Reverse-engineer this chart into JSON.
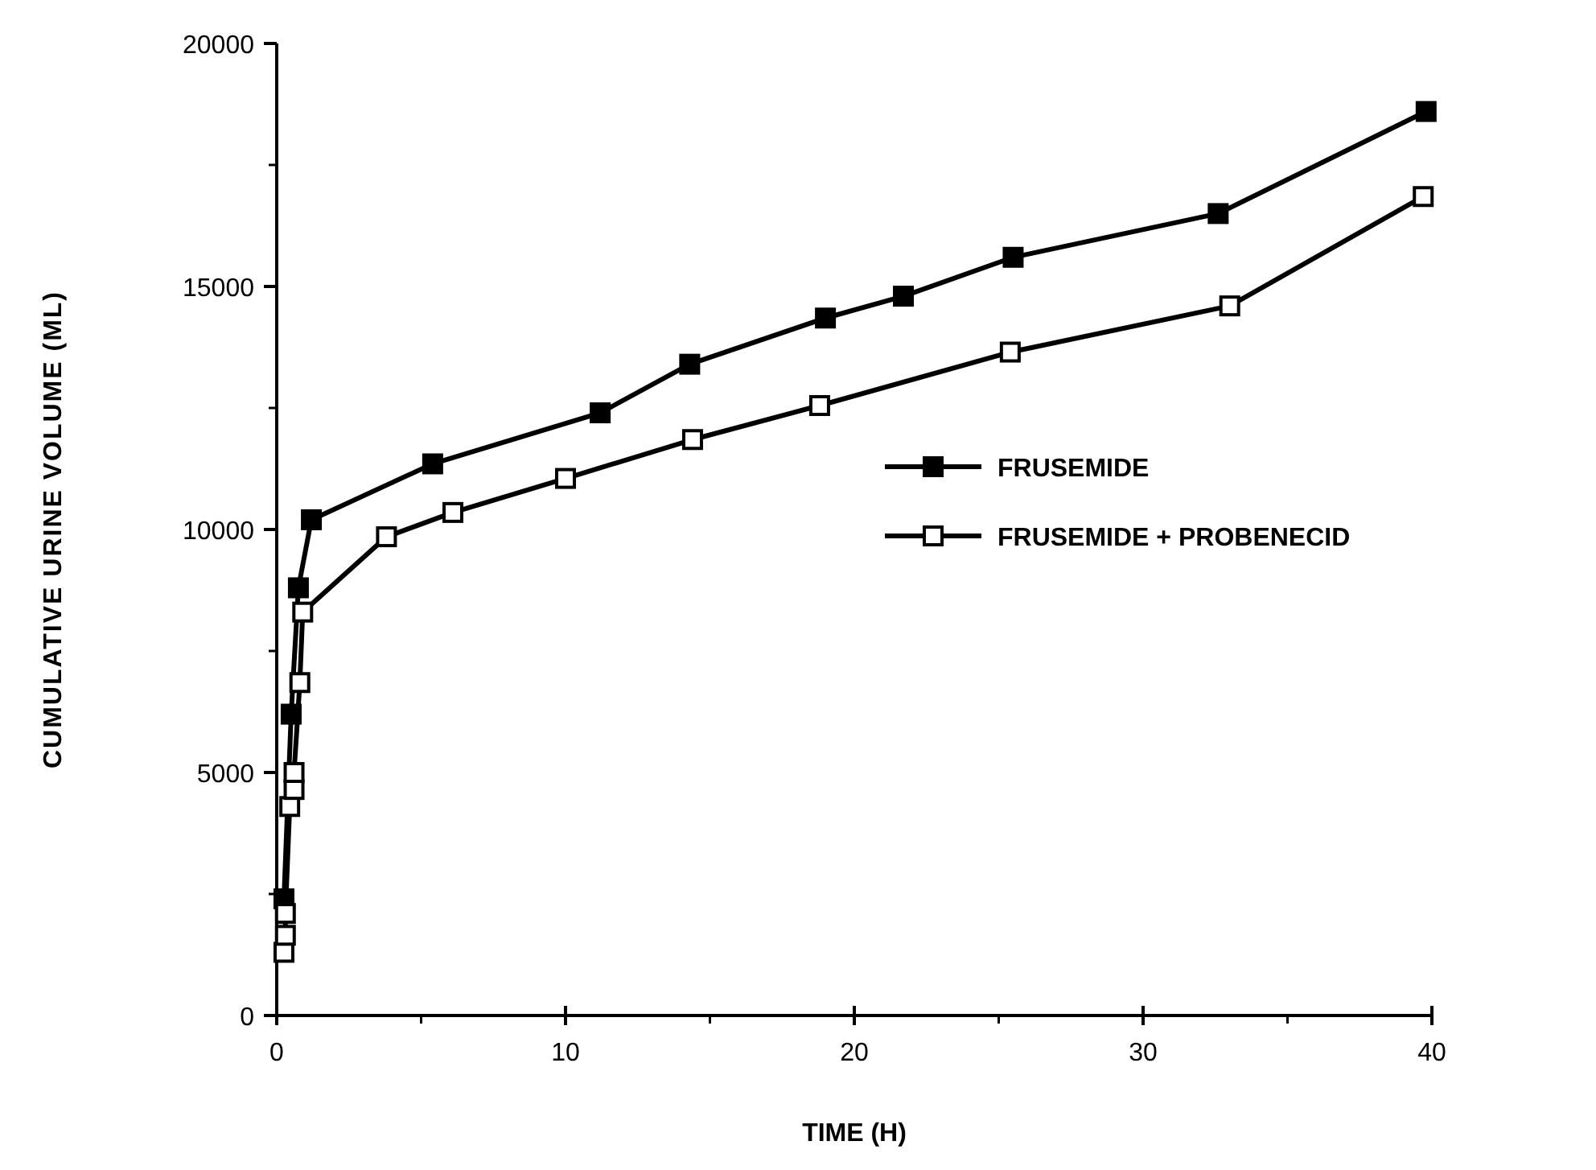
{
  "chart_data": {
    "type": "line",
    "xlabel": "TIME (H)",
    "ylabel": "CUMULATIVE URINE VOLUME (ML)",
    "xlim": [
      0,
      40
    ],
    "xticks": [
      0,
      10,
      20,
      30,
      40
    ],
    "ylim": [
      0,
      20000
    ],
    "yticks": [
      0,
      5000,
      10000,
      15000,
      20000
    ],
    "marker": "square",
    "line_style": "solid",
    "legend": "right",
    "grid": false,
    "series": [
      {
        "name": "FRUSEMIDE",
        "color": "#000000",
        "x": [
          0.25,
          0.5,
          0.75,
          1.2,
          5.4,
          11.2,
          14.3,
          19,
          21.7,
          25.5,
          32.6,
          39.8
        ],
        "values": [
          2400,
          6200,
          8800,
          10200,
          11350,
          12400,
          13400,
          14350,
          14800,
          15600,
          16500,
          18600
        ]
      },
      {
        "name": "FRUSEMIDE + PROBENECID",
        "color": "#ffffff",
        "x": [
          0.25,
          0.3,
          0.3,
          0.45,
          0.6,
          0.6,
          0.8,
          0.9,
          3.8,
          6.1,
          10,
          14.4,
          18.8,
          25.4,
          33,
          39.7
        ],
        "values": [
          1300,
          1650,
          2100,
          4300,
          4650,
          5000,
          6850,
          8300,
          9850,
          10350,
          11050,
          11850,
          12550,
          13650,
          14600,
          16850
        ]
      }
    ]
  }
}
